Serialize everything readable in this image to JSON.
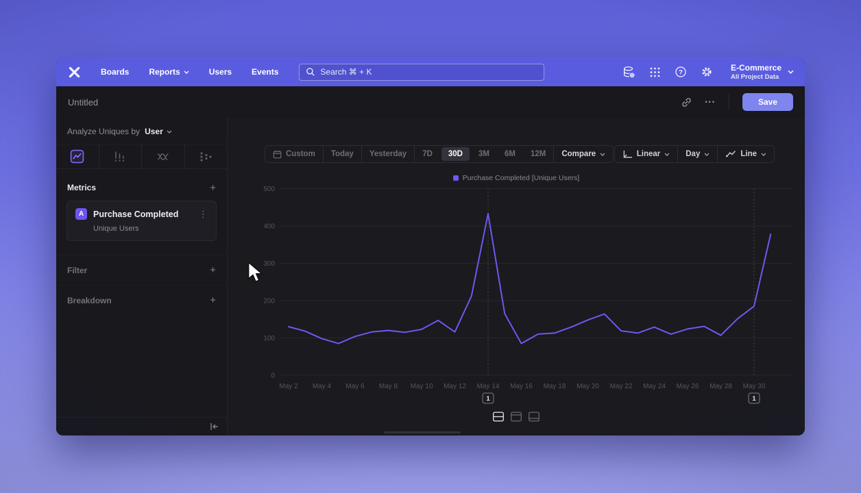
{
  "colors": {
    "nav_bar": "#5a5ce0",
    "save_button": "#7e85ef",
    "line": "#6d59f0",
    "selected_tab_icon": "#7c66f3",
    "window_bg": "#18181d"
  },
  "nav": {
    "brand": "mixpanel-logo",
    "items": [
      "Boards",
      "Reports",
      "Users",
      "Events"
    ],
    "search_placeholder": "Search   ⌘ + K",
    "icons": [
      "data-management-icon",
      "apps-grid-icon",
      "help-icon",
      "settings-gear-icon"
    ],
    "project_name": "E-Commerce",
    "project_scope": "All Project Data"
  },
  "titlebar": {
    "title": "Untitled",
    "more_icon": "•••",
    "save_label": "Save"
  },
  "sidebar": {
    "analyze_prefix": "Analyze Uniques by",
    "analyze_value": "User",
    "tabs": [
      "insights",
      "funnels",
      "retention",
      "flows"
    ],
    "active_tab": "insights",
    "metrics_header": "Metrics",
    "metric": {
      "badge": "A",
      "name": "Purchase Completed",
      "subtitle": "Unique Users",
      "menu_icon": "⋮"
    },
    "filter_header": "Filter",
    "breakdown_header": "Breakdown",
    "add_icon": "+"
  },
  "toolbar": {
    "ranges": [
      "Custom",
      "Today",
      "Yesterday",
      "7D",
      "30D",
      "3M",
      "6M",
      "12M"
    ],
    "selected_range": "30D",
    "compare_label": "Compare",
    "scale_label": "Linear",
    "interval_label": "Day",
    "chart_type_label": "Line"
  },
  "legend": {
    "swatch_color": "#6d59f0",
    "label": "Purchase Completed [Unique Users]"
  },
  "chart_data": {
    "type": "line",
    "title": "",
    "xlabel": "",
    "ylabel": "",
    "ylim": [
      0,
      500
    ],
    "yticks": [
      0,
      100,
      200,
      300,
      400,
      500
    ],
    "grid": "horizontal",
    "legend_position": "top-center",
    "x": [
      "May 2",
      "May 3",
      "May 4",
      "May 5",
      "May 6",
      "May 7",
      "May 8",
      "May 9",
      "May 10",
      "May 11",
      "May 12",
      "May 13",
      "May 14",
      "May 15",
      "May 16",
      "May 17",
      "May 18",
      "May 19",
      "May 20",
      "May 21",
      "May 22",
      "May 23",
      "May 24",
      "May 25",
      "May 26",
      "May 27",
      "May 28",
      "May 29",
      "May 30",
      "May 31"
    ],
    "x_tick_labels": [
      "May 2",
      "May 4",
      "May 6",
      "May 8",
      "May 10",
      "May 12",
      "May 14",
      "May 16",
      "May 18",
      "May 20",
      "May 22",
      "May 24",
      "May 26",
      "May 28",
      "May 30"
    ],
    "series": [
      {
        "name": "Purchase Completed [Unique Users]",
        "color": "#6d59f0",
        "values": [
          130,
          118,
          98,
          85,
          104,
          116,
          120,
          115,
          123,
          147,
          116,
          212,
          433,
          165,
          85,
          110,
          113,
          129,
          148,
          164,
          119,
          113,
          129,
          110,
          124,
          131,
          107,
          151,
          185,
          378
        ]
      }
    ],
    "annotations": [
      {
        "date": "May 14",
        "label": "1"
      },
      {
        "date": "May 30",
        "label": "1"
      }
    ]
  },
  "view_toggles": {
    "options": [
      "split-panel",
      "panel-top",
      "panel-bottom"
    ],
    "active": "split-panel"
  }
}
